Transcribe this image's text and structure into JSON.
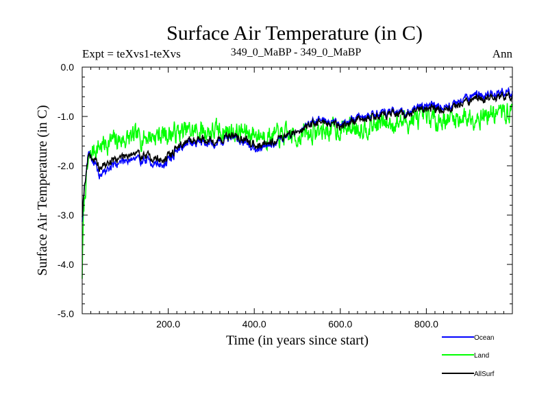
{
  "chart_data": {
    "type": "line",
    "title": "Surface Air Temperature (in C)",
    "subtitle_left": "Expt = teXvs1-teXvs",
    "subtitle_center": "349_0_MaBP - 349_0_MaBP",
    "subtitle_right": "Ann",
    "xlabel": "Time (in years since start)",
    "ylabel": "Surface Air Temperature (in C)",
    "xlim": [
      0,
      1000
    ],
    "ylim": [
      -5.0,
      0.0
    ],
    "x_ticks": [
      200,
      400,
      600,
      800
    ],
    "x_tick_labels": [
      "200.0",
      "400.0",
      "600.0",
      "800.0"
    ],
    "y_ticks": [
      0,
      -1,
      -2,
      -3,
      -4,
      -5
    ],
    "y_tick_labels": [
      "0.0",
      "-1.0",
      "-2.0",
      "-3.0",
      "-4.0",
      "-5.0"
    ],
    "grid": false,
    "legend_position": "bottom-right",
    "series": [
      {
        "name": "Land",
        "color": "#00ff00",
        "noise": 0.22,
        "anchors_x": [
          0,
          3,
          8,
          15,
          25,
          40,
          70,
          110,
          150,
          200,
          250,
          300,
          350,
          400,
          450,
          500,
          550,
          600,
          650,
          700,
          750,
          800,
          850,
          900,
          950,
          1000
        ],
        "anchors_y": [
          -4.2,
          -3.0,
          -2.4,
          -1.9,
          -1.7,
          -1.6,
          -1.5,
          -1.45,
          -1.4,
          -1.35,
          -1.3,
          -1.3,
          -1.3,
          -1.35,
          -1.4,
          -1.4,
          -1.3,
          -1.25,
          -1.2,
          -1.15,
          -1.1,
          -1.05,
          -1.05,
          -1.0,
          -0.95,
          -0.9
        ]
      },
      {
        "name": "Ocean",
        "color": "#0000ff",
        "noise": 0.09,
        "anchors_x": [
          0,
          3,
          8,
          15,
          25,
          40,
          70,
          110,
          150,
          190,
          230,
          270,
          310,
          350,
          400,
          450,
          500,
          550,
          600,
          650,
          700,
          750,
          800,
          850,
          900,
          950,
          1000
        ],
        "anchors_y": [
          -3.1,
          -2.6,
          -2.2,
          -1.7,
          -1.9,
          -2.2,
          -2.0,
          -1.85,
          -1.9,
          -2.0,
          -1.6,
          -1.5,
          -1.55,
          -1.4,
          -1.65,
          -1.5,
          -1.3,
          -1.05,
          -1.15,
          -1.0,
          -0.9,
          -0.95,
          -0.75,
          -0.8,
          -0.6,
          -0.55,
          -0.5
        ]
      },
      {
        "name": "AllSurf",
        "color": "#000000",
        "noise": 0.09,
        "anchors_x": [
          0,
          3,
          8,
          15,
          25,
          40,
          70,
          110,
          150,
          190,
          230,
          270,
          310,
          350,
          400,
          450,
          500,
          550,
          600,
          650,
          700,
          750,
          800,
          850,
          900,
          950,
          1000
        ],
        "anchors_y": [
          -3.0,
          -2.6,
          -2.2,
          -1.75,
          -1.85,
          -2.05,
          -1.9,
          -1.75,
          -1.8,
          -1.9,
          -1.55,
          -1.45,
          -1.5,
          -1.38,
          -1.58,
          -1.47,
          -1.3,
          -1.1,
          -1.18,
          -1.05,
          -0.95,
          -0.98,
          -0.82,
          -0.85,
          -0.68,
          -0.62,
          -0.58
        ]
      }
    ]
  }
}
